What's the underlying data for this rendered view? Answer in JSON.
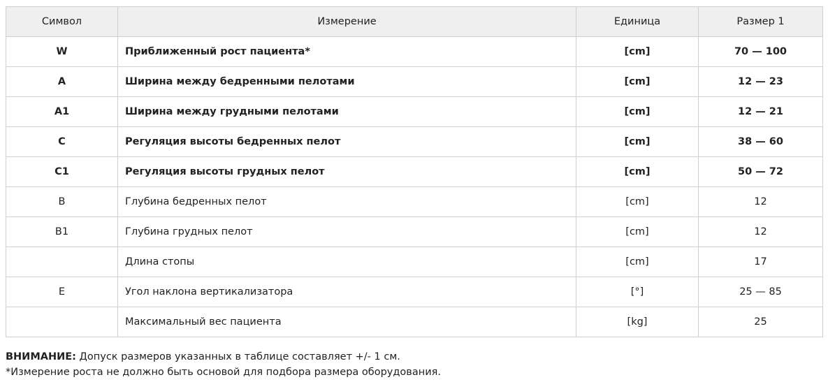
{
  "table": {
    "headers": [
      "Символ",
      "Измерение",
      "Единица",
      "Размер 1"
    ],
    "rows": [
      {
        "symbol": "W",
        "measure": "Приближенный  рост пациента*",
        "unit": "[cm]",
        "size": "70 — 100",
        "bold": true
      },
      {
        "symbol": "A",
        "measure": "Ширина между бедренными пелотами",
        "unit": "[cm]",
        "size": "12 — 23",
        "bold": true
      },
      {
        "symbol": "A1",
        "measure": "Ширина между грудными  пелотами",
        "unit": "[cm]",
        "size": "12 — 21",
        "bold": true
      },
      {
        "symbol": "C",
        "measure": "Регуляция высоты бедренных пелот",
        "unit": "[cm]",
        "size": "38 — 60",
        "bold": true
      },
      {
        "symbol": "C1",
        "measure": "Регуляция высоты грудных пелот",
        "unit": "[cm]",
        "size": "50 — 72",
        "bold": true
      },
      {
        "symbol": "B",
        "measure": "Глубина бедренных пелот",
        "unit": "[cm]",
        "size": "12",
        "bold": false
      },
      {
        "symbol": "B1",
        "measure": "Глубина грудных пелот",
        "unit": "[cm]",
        "size": "12",
        "bold": false
      },
      {
        "symbol": "",
        "measure": "Длина стопы",
        "unit": "[cm]",
        "size": "17",
        "bold": false
      },
      {
        "symbol": "E",
        "measure": "Угол наклона вертикализатора",
        "unit": "[°]",
        "size": "25 — 85",
        "bold": false
      },
      {
        "symbol": "",
        "measure": "Максимальный вес пациента",
        "unit": "[kg]",
        "size": "25",
        "bold": false
      }
    ]
  },
  "notes": {
    "warning_label": "ВНИМАНИЕ:",
    "warning_text": " Допуск размеров указанных в таблице составляет +/- 1 см.",
    "footnote": "*Измерение роста не должно быть основой для подбора размера  оборудования."
  }
}
